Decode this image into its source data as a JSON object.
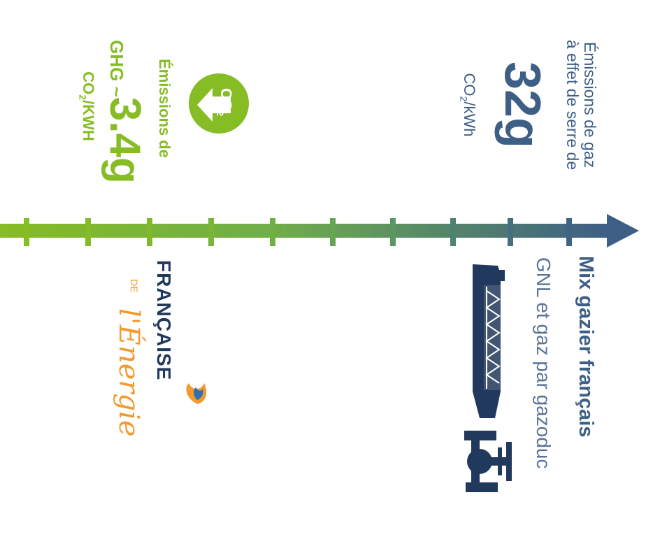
{
  "colors": {
    "green": "#86bc24",
    "blue": "#3d5f86",
    "navy": "#21395c",
    "orange": "#f29a2e",
    "gray_blue": "#5b7597"
  },
  "right_block": {
    "title_line1": "Émissions de gaz",
    "title_line2": "à effet de serre de",
    "value": "32g",
    "unit_main": "CO",
    "unit_sub": "2",
    "unit_rest": "/kWh"
  },
  "left_block": {
    "title_line1": "Émissions de",
    "ghg_prefix": "GHG ~",
    "value": "3.4g",
    "unit_main": "CO",
    "unit_sub": "2",
    "unit_rest": "/KWH",
    "badge_main": "CO",
    "badge_sub": "2"
  },
  "mix": {
    "title": "Mix gazier français",
    "subtitle": "GNL et gaz par gazoduc"
  },
  "logo": {
    "brand": "FRANÇAISE",
    "de": "DE",
    "energie": "l'Énergie"
  },
  "icons": {
    "ship": "lng-tanker-icon",
    "pipeline": "pipeline-valve-icon",
    "co2": "co2-down-arrow-icon",
    "flame": "flame-icon"
  }
}
